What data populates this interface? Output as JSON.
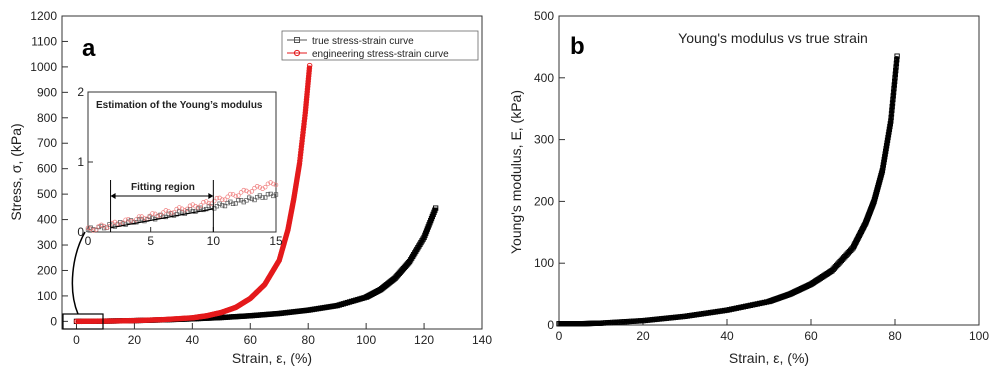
{
  "chart_data": [
    {
      "type": "line",
      "panel_label": "a",
      "xlabel": "Strain, ε, (%)",
      "ylabel": "Stress, σ, (kPa)",
      "xlim": [
        -5,
        140
      ],
      "ylim": [
        -30,
        1200
      ],
      "xticks": [
        0,
        20,
        40,
        60,
        80,
        100,
        120,
        140
      ],
      "yticks": [
        0,
        100,
        200,
        300,
        400,
        500,
        600,
        700,
        800,
        900,
        1000,
        1100,
        1200
      ],
      "legend_position": "top-right",
      "series": [
        {
          "name": "true stress-strain curve",
          "color": "#000000",
          "x": [
            0,
            10,
            20,
            30,
            40,
            50,
            60,
            70,
            80,
            90,
            100,
            105,
            110,
            115,
            120,
            124
          ],
          "y": [
            0,
            1,
            3,
            6,
            10,
            15,
            22,
            31,
            44,
            62,
            95,
            125,
            170,
            235,
            330,
            445
          ]
        },
        {
          "name": "engineering stress-strain curve",
          "color": "#e41a1c",
          "x": [
            0,
            10,
            20,
            30,
            40,
            45,
            50,
            55,
            60,
            65,
            70,
            73,
            75,
            77,
            79,
            80.5
          ],
          "y": [
            0,
            1,
            3,
            7,
            14,
            22,
            35,
            55,
            90,
            145,
            240,
            360,
            480,
            620,
            820,
            1005
          ]
        }
      ],
      "inset": {
        "title": "Estimation of the Young’s modulus",
        "annotation": "Fitting region",
        "xlim": [
          0,
          15
        ],
        "ylim": [
          0,
          2
        ],
        "xticks": [
          0,
          5,
          10,
          15
        ],
        "yticks": [
          0,
          1,
          2
        ],
        "fit_range": [
          1.8,
          10
        ],
        "fit_line": {
          "x": [
            1.8,
            10
          ],
          "y": [
            0.06,
            0.33
          ]
        }
      }
    },
    {
      "type": "line",
      "panel_label": "b",
      "title": "Young's modulus vs true strain",
      "xlabel": "Strain, ε, (%)",
      "ylabel": "Young's modulus, E, (kPa)",
      "xlim": [
        0,
        100
      ],
      "ylim": [
        0,
        500
      ],
      "xticks": [
        0,
        20,
        40,
        60,
        80,
        100
      ],
      "yticks": [
        0,
        100,
        200,
        300,
        400,
        500
      ],
      "series": [
        {
          "color": "#000000",
          "x": [
            0,
            5,
            10,
            20,
            30,
            40,
            50,
            55,
            60,
            65,
            70,
            73,
            75,
            77,
            79,
            80.5
          ],
          "y": [
            2,
            2,
            3,
            7,
            14,
            24,
            38,
            50,
            66,
            88,
            125,
            165,
            200,
            250,
            330,
            435
          ]
        }
      ]
    }
  ]
}
